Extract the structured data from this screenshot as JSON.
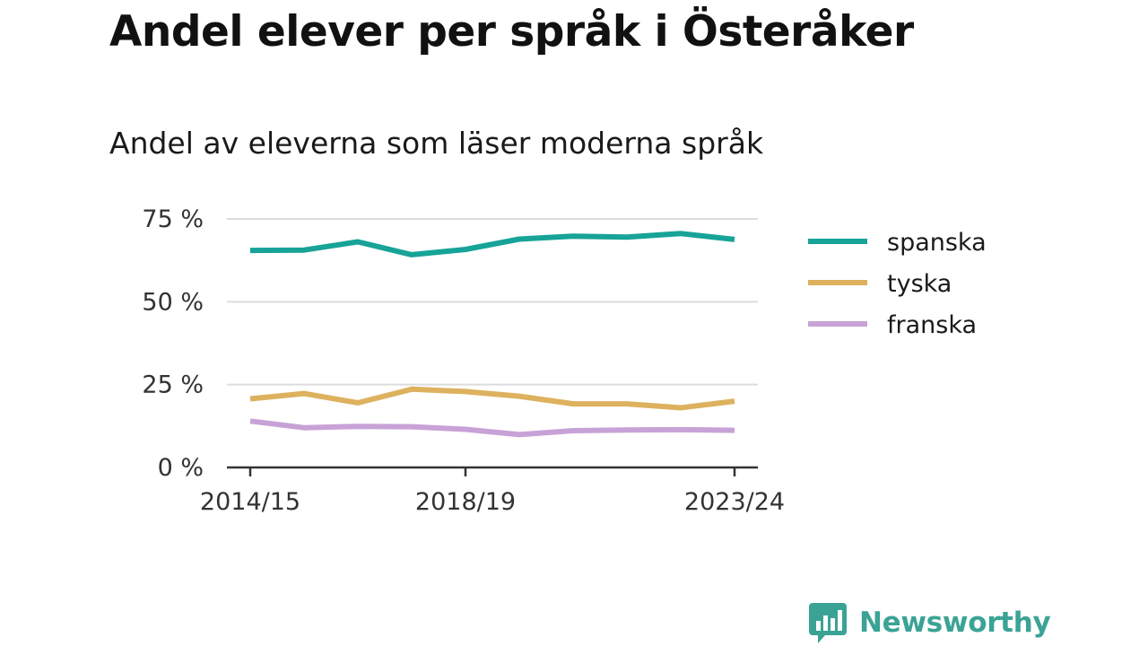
{
  "header": {
    "title": "Andel elever per språk i Österåker",
    "subtitle": "Andel av eleverna som läser moderna språk"
  },
  "brand": {
    "name": "Newsworthy",
    "logo_icon": "bar-chart-speech-bubble-icon",
    "color": "#3aa395"
  },
  "chart_data": {
    "type": "line",
    "x": [
      "2014/15",
      "2015/16",
      "2016/17",
      "2017/18",
      "2018/19",
      "2019/20",
      "2020/21",
      "2021/22",
      "2022/23",
      "2023/24"
    ],
    "x_tick_labels": [
      "2014/15",
      "2018/19",
      "2023/24"
    ],
    "y_tick_labels": [
      "0 %",
      "25 %",
      "50 %",
      "75 %"
    ],
    "y_ticks": [
      0,
      25,
      50,
      75
    ],
    "ylim": [
      0,
      75
    ],
    "grid": true,
    "legend_position": "right",
    "series": [
      {
        "name": "spanska",
        "color": "#17a398",
        "values": [
          65.5,
          65.6,
          68.1,
          64.2,
          65.8,
          68.9,
          69.8,
          69.5,
          70.6,
          68.8
        ]
      },
      {
        "name": "tyska",
        "color": "#ddb15e",
        "values": [
          20.7,
          22.3,
          19.5,
          23.6,
          22.9,
          21.5,
          19.2,
          19.2,
          18.0,
          20.0
        ]
      },
      {
        "name": "franska",
        "color": "#c8a2d6",
        "values": [
          14.0,
          12.0,
          12.4,
          12.3,
          11.5,
          9.9,
          11.1,
          11.3,
          11.4,
          11.2
        ]
      }
    ]
  }
}
